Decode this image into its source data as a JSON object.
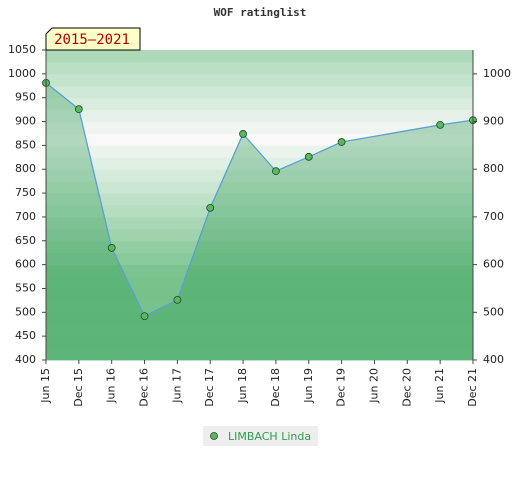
{
  "chart_data": {
    "type": "line",
    "title": "WOF ratinglist",
    "annotation": "2015–2021",
    "xticks": [
      "Jun 15",
      "Dec 15",
      "Jun 16",
      "Dec 16",
      "Jun 17",
      "Dec 17",
      "Jun 18",
      "Dec 18",
      "Jun 19",
      "Dec 19",
      "Jun 20",
      "Dec 20",
      "Jun 21",
      "Dec 21"
    ],
    "x": [
      "Jun 15",
      "Dec 15",
      "Jun 16",
      "Dec 16",
      "Jun 17",
      "Dec 17",
      "Jun 18",
      "Dec 18",
      "Jun 19",
      "Dec 19",
      "Jun 21",
      "Dec 21"
    ],
    "series": [
      {
        "name": "LIMBACH Linda",
        "color": "#5a9fd4",
        "marker_color": "#5cb85c",
        "values": [
          981,
          926,
          635,
          492,
          526,
          719,
          874,
          796,
          826,
          857,
          893,
          903
        ]
      }
    ],
    "ylim": [
      400,
      1050
    ],
    "yticks": [
      400,
      450,
      500,
      550,
      600,
      650,
      700,
      750,
      800,
      850,
      900,
      950,
      1000,
      1050
    ],
    "y2lim": [
      400,
      1050
    ],
    "y2ticks": [
      400,
      500,
      600,
      700,
      800,
      900,
      1000
    ]
  }
}
